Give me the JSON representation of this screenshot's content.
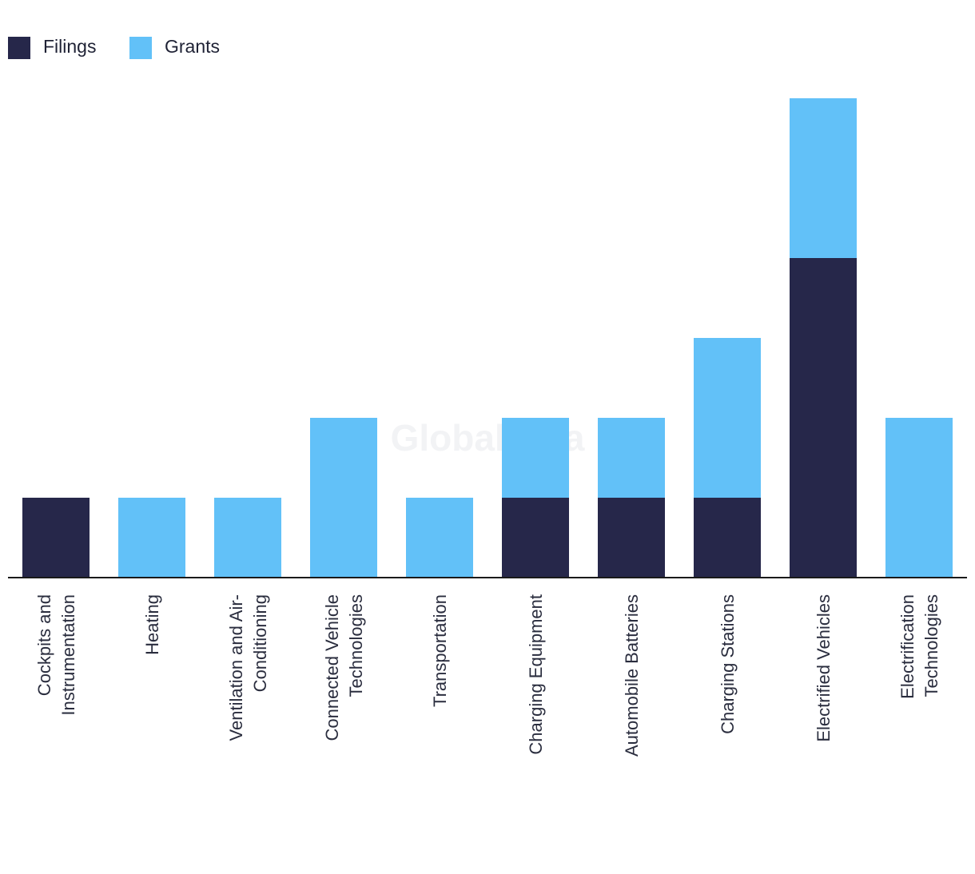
{
  "watermark": "GlobalData",
  "legend": [
    {
      "label": "Filings",
      "color": "#26274a"
    },
    {
      "label": "Grants",
      "color": "#62c1f8"
    }
  ],
  "chart_data": {
    "type": "bar",
    "stacked": true,
    "title": "",
    "xlabel": "",
    "ylabel": "",
    "ylim": [
      0,
      6
    ],
    "grid": false,
    "legend_position": "top-left",
    "categories": [
      [
        "Cockpits and",
        "Instrumentation"
      ],
      [
        "Heating"
      ],
      [
        "Ventilation and Air-",
        "Conditioning"
      ],
      [
        "Connected Vehicle",
        "Technologies"
      ],
      [
        "Transportation"
      ],
      [
        "Charging Equipment"
      ],
      [
        "Automobile Batteries"
      ],
      [
        "Charging Stations"
      ],
      [
        "Electrified Vehicles"
      ],
      [
        "Electrification",
        "Technologies"
      ]
    ],
    "series": [
      {
        "name": "Filings",
        "color": "#26274a",
        "values": [
          1,
          0,
          0,
          0,
          0,
          1,
          1,
          1,
          4,
          0
        ]
      },
      {
        "name": "Grants",
        "color": "#62c1f8",
        "values": [
          0,
          1,
          1,
          2,
          1,
          1,
          1,
          2,
          2,
          2
        ]
      }
    ]
  }
}
